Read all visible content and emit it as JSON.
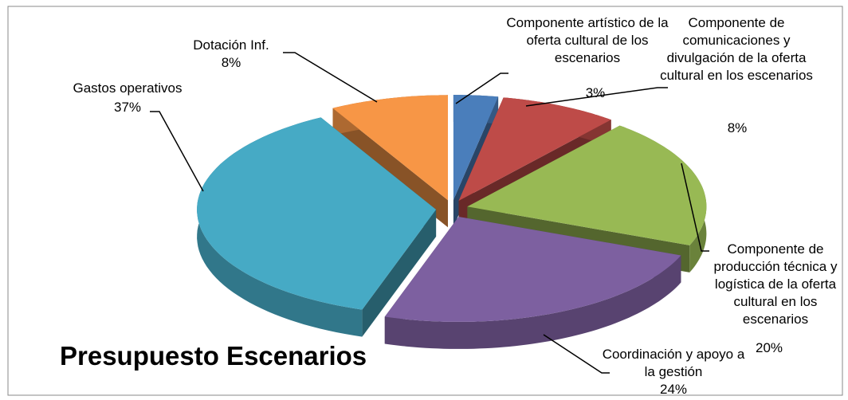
{
  "chart_data": {
    "type": "pie3d",
    "title": "Presupuesto Escenarios",
    "categories": [
      "Componente artístico de la oferta cultural de los escenarios",
      "Componente de comunicaciones y divulgación de la oferta cultural en los escenarios",
      "Componente de producción técnica y logística de la oferta cultural en los escenarios",
      "Coordinación y apoyo a la gestión",
      "Gastos operativos",
      "Dotación Inf."
    ],
    "values": [
      3,
      8,
      20,
      24,
      37,
      8
    ],
    "value_labels": [
      "3%",
      "8%",
      "20%",
      "24%",
      "37%",
      "8%"
    ],
    "colors": [
      "#4a7ebb",
      "#be4b48",
      "#98b954",
      "#7d60a0",
      "#46aac5",
      "#f79646"
    ]
  }
}
